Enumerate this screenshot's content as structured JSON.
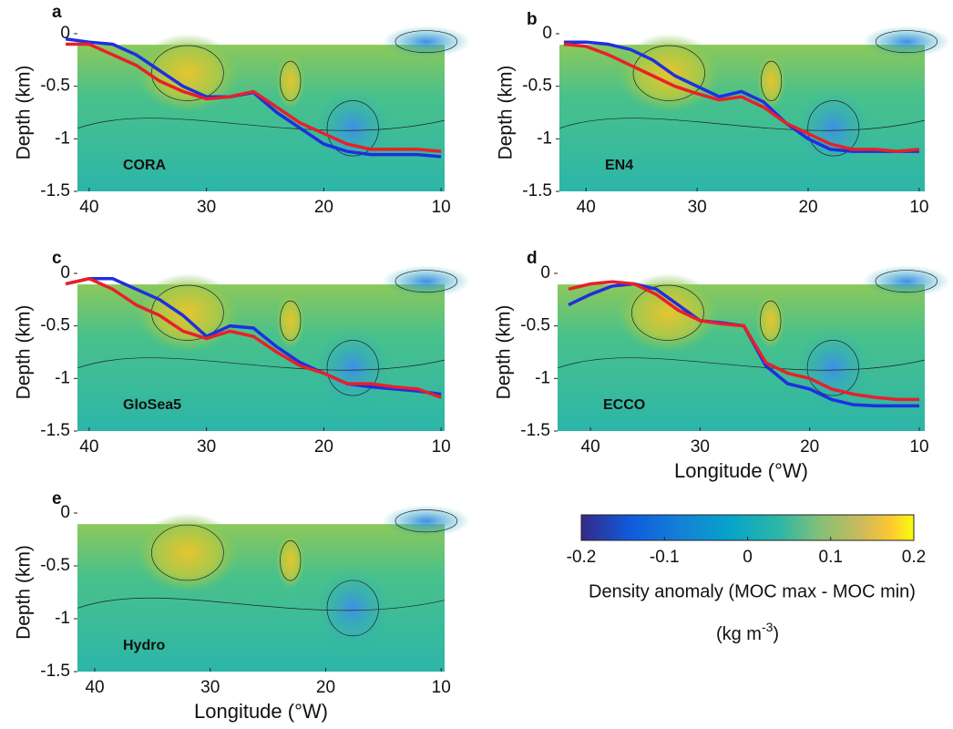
{
  "chart_data": [
    {
      "type": "line",
      "panel_label": "a",
      "annotation": "CORA",
      "ylabel": "Depth (km)",
      "xlim": [
        41,
        9.7
      ],
      "xticks": [
        40,
        30,
        20,
        10
      ],
      "ylim": [
        -1.5,
        0
      ],
      "yticks": [
        -1.5,
        -1,
        -0.5,
        0
      ],
      "x": [
        42,
        40,
        38,
        36,
        34,
        32,
        30,
        28,
        26,
        24,
        22,
        20,
        18,
        16,
        14,
        12,
        10
      ],
      "series": [
        {
          "color": "#1f2fe0",
          "values": [
            -0.05,
            -0.08,
            -0.1,
            -0.2,
            -0.35,
            -0.5,
            -0.6,
            -0.6,
            -0.56,
            -0.75,
            -0.9,
            -1.05,
            -1.12,
            -1.15,
            -1.15,
            -1.15,
            -1.17
          ]
        },
        {
          "color": "#e8202a",
          "values": [
            -0.1,
            -0.1,
            -0.2,
            -0.3,
            -0.45,
            -0.55,
            -0.62,
            -0.6,
            -0.55,
            -0.7,
            -0.85,
            -0.95,
            -1.05,
            -1.1,
            -1.1,
            -1.1,
            -1.12
          ]
        }
      ]
    },
    {
      "type": "line",
      "panel_label": "b",
      "annotation": "EN4",
      "ylabel": "Depth (km)",
      "xlim": [
        42.4,
        9.5
      ],
      "xticks": [
        40,
        30,
        20,
        10
      ],
      "ylim": [
        -1.5,
        0
      ],
      "yticks": [
        -1.5,
        -1,
        -0.5,
        0
      ],
      "x": [
        42,
        40,
        38,
        36,
        34,
        32,
        30,
        28,
        26,
        24,
        22,
        20,
        18,
        16,
        14,
        12,
        10
      ],
      "series": [
        {
          "color": "#1f2fe0",
          "values": [
            -0.08,
            -0.08,
            -0.1,
            -0.15,
            -0.25,
            -0.4,
            -0.5,
            -0.6,
            -0.55,
            -0.65,
            -0.85,
            -1.0,
            -1.1,
            -1.12,
            -1.12,
            -1.12,
            -1.12
          ]
        },
        {
          "color": "#e8202a",
          "values": [
            -0.1,
            -0.12,
            -0.2,
            -0.3,
            -0.4,
            -0.5,
            -0.57,
            -0.63,
            -0.6,
            -0.7,
            -0.85,
            -0.95,
            -1.05,
            -1.1,
            -1.1,
            -1.12,
            -1.1
          ]
        }
      ]
    },
    {
      "type": "line",
      "panel_label": "c",
      "annotation": "GloSea5",
      "ylabel": "Depth (km)",
      "xlim": [
        41,
        9.7
      ],
      "xticks": [
        40,
        30,
        20,
        10
      ],
      "ylim": [
        -1.5,
        0
      ],
      "yticks": [
        -1.5,
        -1,
        -0.5,
        0
      ],
      "x": [
        42,
        40,
        38,
        36,
        34,
        32,
        30,
        28,
        26,
        24,
        22,
        20,
        18,
        16,
        14,
        12,
        10
      ],
      "series": [
        {
          "color": "#1f2fe0",
          "values": [
            -0.1,
            -0.05,
            -0.05,
            -0.15,
            -0.25,
            -0.4,
            -0.6,
            -0.5,
            -0.52,
            -0.7,
            -0.85,
            -0.95,
            -1.05,
            -1.08,
            -1.1,
            -1.12,
            -1.15
          ]
        },
        {
          "color": "#e8202a",
          "values": [
            -0.1,
            -0.05,
            -0.15,
            -0.3,
            -0.4,
            -0.55,
            -0.62,
            -0.55,
            -0.6,
            -0.75,
            -0.88,
            -0.95,
            -1.05,
            -1.05,
            -1.08,
            -1.1,
            -1.18
          ]
        }
      ]
    },
    {
      "type": "line",
      "panel_label": "d",
      "annotation": "ECCO",
      "ylabel": "Depth (km)",
      "xlabel": "Longitude (°W)",
      "xlim": [
        43,
        9.5
      ],
      "xticks": [
        40,
        30,
        20,
        10
      ],
      "ylim": [
        -1.5,
        0
      ],
      "yticks": [
        -1.5,
        -1,
        -0.5,
        0
      ],
      "x": [
        42,
        40,
        38,
        36,
        34,
        32,
        30,
        28,
        26,
        24,
        22,
        20,
        18,
        16,
        14,
        12,
        10
      ],
      "series": [
        {
          "color": "#1f2fe0",
          "values": [
            -0.3,
            -0.2,
            -0.12,
            -0.1,
            -0.15,
            -0.3,
            -0.45,
            -0.47,
            -0.5,
            -0.88,
            -1.05,
            -1.1,
            -1.2,
            -1.25,
            -1.26,
            -1.26,
            -1.26
          ]
        },
        {
          "color": "#e8202a",
          "values": [
            -0.15,
            -0.1,
            -0.08,
            -0.1,
            -0.2,
            -0.35,
            -0.45,
            -0.48,
            -0.5,
            -0.85,
            -0.95,
            -1.0,
            -1.1,
            -1.15,
            -1.18,
            -1.2,
            -1.2
          ]
        }
      ]
    },
    {
      "type": "line",
      "panel_label": "e",
      "annotation": "Hydro",
      "ylabel": "Depth (km)",
      "xlabel": "Longitude (°W)",
      "xlim": [
        41.5,
        9.7
      ],
      "xticks": [
        40,
        30,
        20,
        10
      ],
      "ylim": [
        -1.5,
        0
      ],
      "yticks": [
        -1.5,
        -1,
        -0.5,
        0
      ],
      "x": [],
      "series": []
    },
    {
      "type": "colorbar",
      "label": "Density anomaly (MOC max - MOC min)",
      "unit_parts": [
        "(kg m",
        "-3",
        ")"
      ],
      "xlim": [
        -0.2,
        0.2
      ],
      "xticks": [
        -0.2,
        -0.1,
        0,
        0.1,
        0.2
      ]
    }
  ]
}
